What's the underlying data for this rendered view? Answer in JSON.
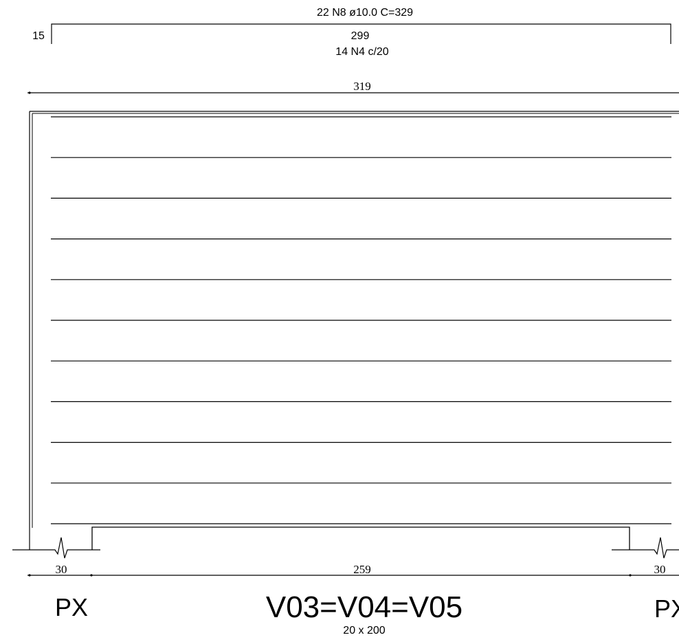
{
  "rebar_top": {
    "label": "22 N8 ø10.0  C=329",
    "hook_length": "15",
    "straight_length": "299"
  },
  "stirrups": {
    "label": "14 N4 c/20"
  },
  "dimensions": {
    "total_length": "319",
    "left_support_width": "30",
    "clear_span": "259",
    "right_support_width": "30"
  },
  "supports": {
    "left_label": "PX",
    "right_label": "PX"
  },
  "beam": {
    "name": "V03=V04=V05",
    "section": "20 x 200"
  },
  "horizontal_bar_count": 11,
  "colors": {
    "ink": "#000000",
    "background": "#ffffff"
  }
}
